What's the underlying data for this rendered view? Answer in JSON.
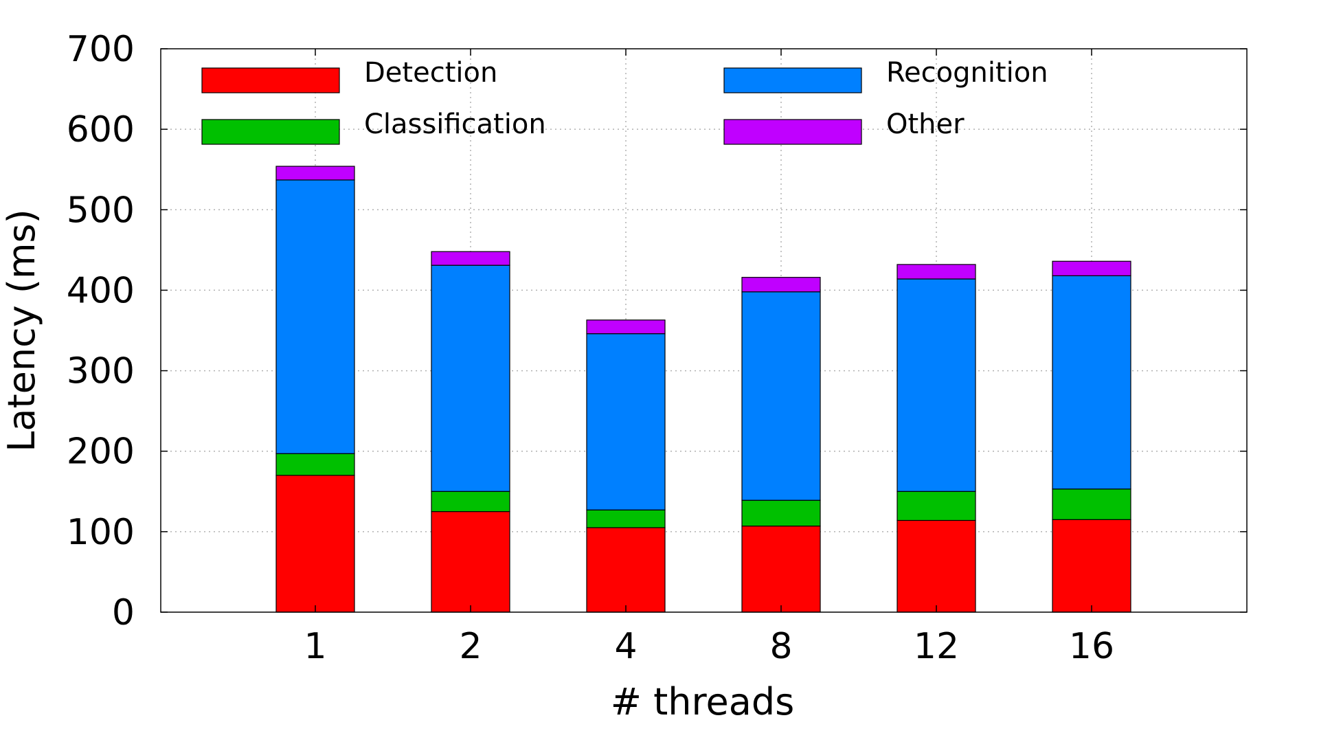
{
  "chart_data": {
    "type": "bar",
    "stacked": true,
    "title": "",
    "xlabel": "# threads",
    "ylabel": "Latency (ms)",
    "ylim": [
      0,
      700
    ],
    "yticks": [
      0,
      100,
      200,
      300,
      400,
      500,
      600,
      700
    ],
    "categories": [
      "1",
      "2",
      "4",
      "8",
      "12",
      "16"
    ],
    "series": [
      {
        "name": "Detection",
        "color": "#ff0000",
        "values": [
          170,
          125,
          105,
          107,
          114,
          115
        ]
      },
      {
        "name": "Classification",
        "color": "#00c000",
        "values": [
          27,
          25,
          22,
          32,
          36,
          38
        ]
      },
      {
        "name": "Recognition",
        "color": "#0080ff",
        "values": [
          340,
          281,
          219,
          259,
          264,
          265
        ]
      },
      {
        "name": "Other",
        "color": "#c000ff",
        "values": [
          17,
          17,
          17,
          18,
          18,
          18
        ]
      }
    ],
    "legend_order": [
      "Detection",
      "Recognition",
      "Classification",
      "Other"
    ],
    "grid": true,
    "legend_position": "top"
  }
}
